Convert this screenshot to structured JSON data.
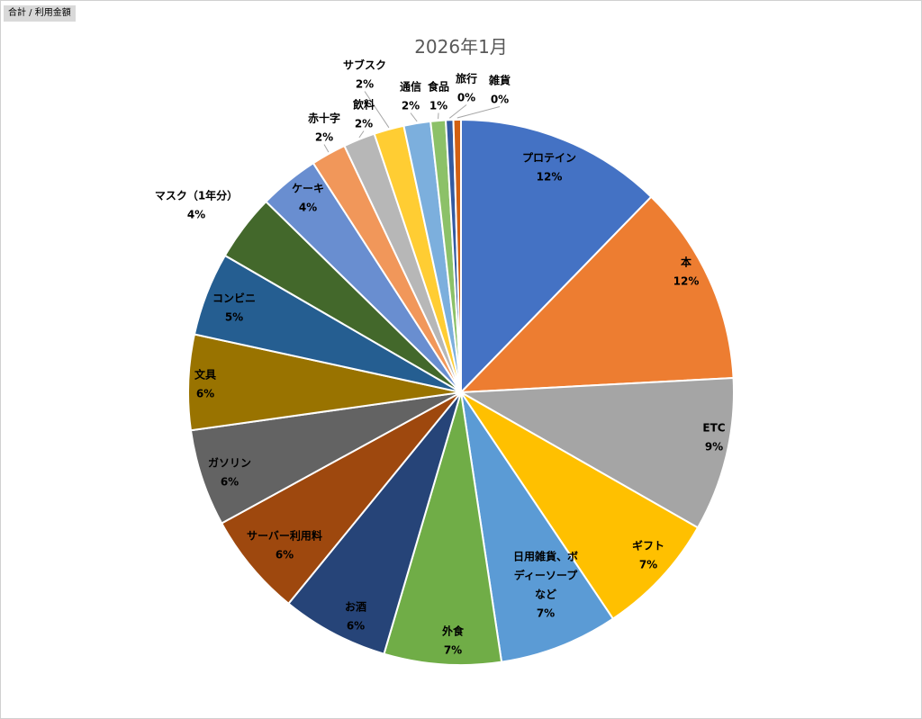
{
  "field_tag": "合計 / 利用金額",
  "chart_data": {
    "type": "pie",
    "title": "2026年1月",
    "slices": [
      {
        "label": "プロテイン",
        "percent": "12%",
        "value": 12.4,
        "color": "#4472C4"
      },
      {
        "label": "本",
        "percent": "12%",
        "value": 12.0,
        "color": "#ED7D31"
      },
      {
        "label": "ETC",
        "percent": "9%",
        "value": 9.2,
        "color": "#A5A5A5"
      },
      {
        "label": "ギフト",
        "percent": "7%",
        "value": 7.4,
        "color": "#FFC000"
      },
      {
        "label": "日用雑貨、ボディーソープなど",
        "percent": "7%",
        "value": 7.1,
        "color": "#5B9BD5"
      },
      {
        "label": "外食",
        "percent": "7%",
        "value": 7.0,
        "color": "#70AD47"
      },
      {
        "label": "お酒",
        "percent": "6%",
        "value": 6.4,
        "color": "#264478"
      },
      {
        "label": "サーバー利用料",
        "percent": "6%",
        "value": 6.2,
        "color": "#9E480E"
      },
      {
        "label": "ガソリン",
        "percent": "6%",
        "value": 5.8,
        "color": "#636363"
      },
      {
        "label": "文具",
        "percent": "6%",
        "value": 5.7,
        "color": "#997300"
      },
      {
        "label": "コンビニ",
        "percent": "5%",
        "value": 5.0,
        "color": "#255E91"
      },
      {
        "label": "マスク（1年分）",
        "percent": "4%",
        "value": 4.0,
        "color": "#43682B"
      },
      {
        "label": "ケーキ",
        "percent": "4%",
        "value": 3.6,
        "color": "#698ED0"
      },
      {
        "label": "赤十字",
        "percent": "2%",
        "value": 2.1,
        "color": "#F1975A"
      },
      {
        "label": "飲料",
        "percent": "2%",
        "value": 1.9,
        "color": "#B7B7B7"
      },
      {
        "label": "サブスク",
        "percent": "2%",
        "value": 1.8,
        "color": "#FFCD33"
      },
      {
        "label": "通信",
        "percent": "2%",
        "value": 1.6,
        "color": "#7CAFDD"
      },
      {
        "label": "食品",
        "percent": "1%",
        "value": 0.9,
        "color": "#8CC168"
      },
      {
        "label": "旅行",
        "percent": "0%",
        "value": 0.45,
        "color": "#335AA1"
      },
      {
        "label": "雑貨",
        "percent": "0%",
        "value": 0.45,
        "color": "#D26012"
      }
    ]
  }
}
